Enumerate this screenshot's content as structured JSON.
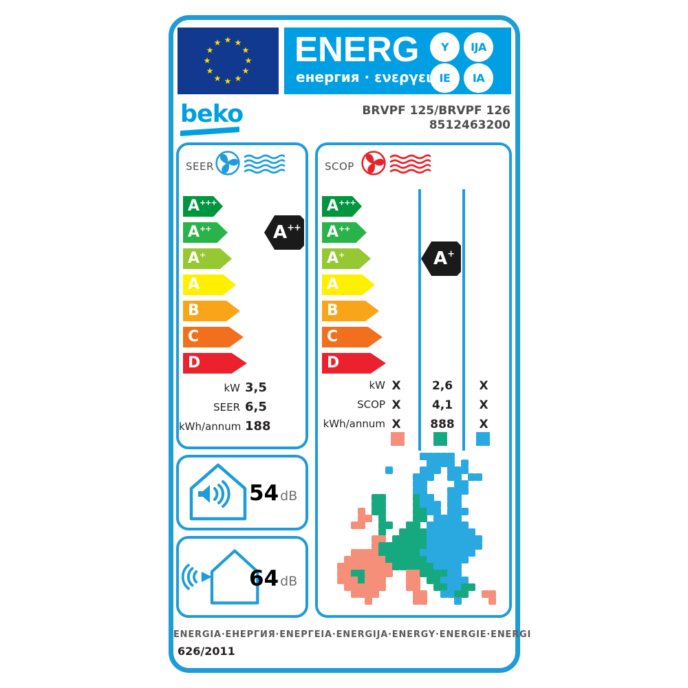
{
  "colors": {
    "border_blue": "#1E9CD9",
    "banner_blue": "#009FE3",
    "flag_navy": "#10398F",
    "star_yellow": "#FFDD00",
    "text_dark": "#231F20",
    "text_gray": "#4D4D4F",
    "db_unit_gray": "#6D6E71",
    "fan_cool": "#1E9CD9",
    "fan_heat": "#E8232A",
    "badge_black": "#1A1A1A"
  },
  "header": {
    "energ_title": "ENERG",
    "energ_subtitle": "енергия · ενεργεια",
    "badges": [
      "Y",
      "IJA",
      "IE",
      "IA"
    ],
    "flag_star_count": 12
  },
  "brand": {
    "logo_text": "beko",
    "model_line1": "BRVPF 125/BRVPF 126",
    "model_line2": "8512463200"
  },
  "scale_classes": [
    {
      "letter": "A",
      "sup": "+++",
      "color": "#00953F",
      "width": 58
    },
    {
      "letter": "A",
      "sup": "++",
      "color": "#2AB34A",
      "width": 65
    },
    {
      "letter": "A",
      "sup": "+",
      "color": "#95C831",
      "width": 71
    },
    {
      "letter": "A",
      "sup": "",
      "color": "#FFF000",
      "width": 77
    },
    {
      "letter": "B",
      "sup": "",
      "color": "#FAA519",
      "width": 83
    },
    {
      "letter": "C",
      "sup": "",
      "color": "#F2701D",
      "width": 88
    },
    {
      "letter": "D",
      "sup": "",
      "color": "#EB212E",
      "width": 93
    }
  ],
  "seer_panel": {
    "label": "SEER",
    "rating": {
      "letter": "A",
      "sup": "++",
      "row": 1
    },
    "values": [
      {
        "label": "kW",
        "value": "3,5"
      },
      {
        "label": "SEER",
        "value": "6,5"
      },
      {
        "label": "kWh/annum",
        "value": "188"
      }
    ]
  },
  "scop_panel": {
    "label": "SCOP",
    "rating": {
      "letter": "A",
      "sup": "+",
      "row": 2
    },
    "rows": [
      {
        "label": "kW",
        "cols": [
          "X",
          "2,6",
          "X"
        ]
      },
      {
        "label": "SCOP",
        "cols": [
          "X",
          "4,1",
          "X"
        ]
      },
      {
        "label": "kWh/annum",
        "cols": [
          "X",
          "888",
          "X"
        ]
      }
    ],
    "legend_colors": [
      "#F58F79",
      "#16A980",
      "#29A9E0"
    ],
    "map": {
      "palette": {
        "P": "#F58F79",
        "G": "#16A980",
        "B": "#29A9E0"
      },
      "rows": [
        "............BBBBB.......",
        ".............BBBB.B.....",
        ".......B....BBB.BBB.....",
        "...........BBB..BB.BB...",
        "...........BB....BB.....",
        "...........BB...BBB.....",
        ".....GG....GBB..BB......",
        ".....GG....GBBB.BB......",
        "...P.GG....GGBB.BBB.....",
        "...PP.G....GG.BBBB......",
        "..PP..GG..GG.BBBBBB.....",
        "......G..GGGGBBBBBBB....",
        ".....PP.GGGGGBBBBBBBB...",
        ".....PGGGGGGGBBBBBBBB...",
        "..PPPPGGGGGGBBBBBBBB....",
        ".PPPPPPGGGGGGBBBBBB.....",
        "PPPPPPPPGGGGGGBBBB......",
        "PPGGPPPP..PPGGGGBB......",
        "PPPGPPP...PP.GGBBBB.....",
        ".PPPPPP...PP..GGBBGG....",
        "..PPPP.....PP..BBGG..PP.",
        "....P......PP....B....P."
      ]
    }
  },
  "noise": [
    {
      "value": "54",
      "unit": "dB"
    },
    {
      "value": "64",
      "unit": "dB"
    }
  ],
  "footer": {
    "energy_words": "ENERGIA·ЕНЕРГИЯ·ENEPΓEIA·ENERGIJA·ENERGY·ENERGIE·ENERGI",
    "regulation": "626/2011"
  }
}
